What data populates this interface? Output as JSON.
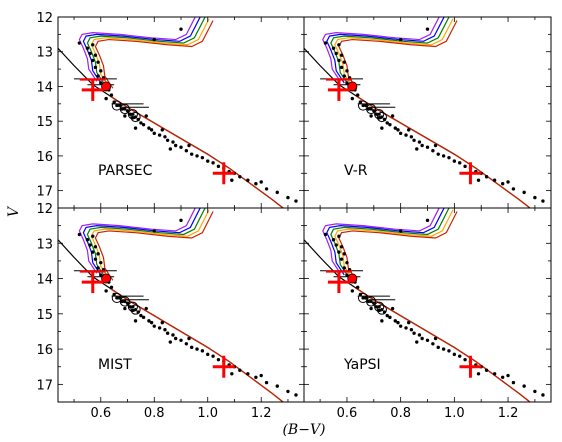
{
  "chart_data": {
    "type": "scatter",
    "xlabel": "(B−V)",
    "ylabel": "V",
    "xlim": [
      0.44,
      1.36
    ],
    "ylim": [
      17.5,
      12.0
    ],
    "y_inverted": true,
    "grid": false,
    "x_ticks": [
      "0.6",
      "0.8",
      "1.0",
      "1.2"
    ],
    "y_ticks": [
      "12",
      "13",
      "14",
      "15",
      "16",
      "17"
    ],
    "isochrone_colors": [
      "#a020f0",
      "#0000ff",
      "#008000",
      "#ffa500",
      "#cc2200"
    ],
    "highlight_color": "#ff0000",
    "panels": [
      {
        "label": "PARSEC"
      },
      {
        "label": "V-R"
      },
      {
        "label": "MIST"
      },
      {
        "label": "YaPSI"
      }
    ],
    "field_stars": [
      [
        0.52,
        12.75
      ],
      [
        0.55,
        12.9
      ],
      [
        0.56,
        13.05
      ],
      [
        0.57,
        12.8
      ],
      [
        0.58,
        13.1
      ],
      [
        0.57,
        13.25
      ],
      [
        0.59,
        13.3
      ],
      [
        0.58,
        13.45
      ],
      [
        0.6,
        13.55
      ],
      [
        0.59,
        13.7
      ],
      [
        0.61,
        13.75
      ],
      [
        0.6,
        13.9
      ],
      [
        0.62,
        13.95
      ],
      [
        0.63,
        14.1
      ],
      [
        0.64,
        14.25
      ],
      [
        0.62,
        14.35
      ],
      [
        0.65,
        14.45
      ],
      [
        0.67,
        14.55
      ],
      [
        0.68,
        14.65
      ],
      [
        0.7,
        14.7
      ],
      [
        0.71,
        14.8
      ],
      [
        0.72,
        14.9
      ],
      [
        0.74,
        14.95
      ],
      [
        0.75,
        15.05
      ],
      [
        0.76,
        15.1
      ],
      [
        0.78,
        15.2
      ],
      [
        0.79,
        15.25
      ],
      [
        0.8,
        15.35
      ],
      [
        0.82,
        15.4
      ],
      [
        0.84,
        15.45
      ],
      [
        0.85,
        15.55
      ],
      [
        0.87,
        15.6
      ],
      [
        0.88,
        15.7
      ],
      [
        0.9,
        15.75
      ],
      [
        0.92,
        15.85
      ],
      [
        0.94,
        15.95
      ],
      [
        0.96,
        16.0
      ],
      [
        0.98,
        16.05
      ],
      [
        1.0,
        16.15
      ],
      [
        1.02,
        16.2
      ],
      [
        1.04,
        16.3
      ],
      [
        1.06,
        16.35
      ],
      [
        1.08,
        16.45
      ],
      [
        1.1,
        16.5
      ],
      [
        1.12,
        16.6
      ],
      [
        1.15,
        16.7
      ],
      [
        1.18,
        16.8
      ],
      [
        1.22,
        16.95
      ],
      [
        1.26,
        17.05
      ],
      [
        1.3,
        17.2
      ],
      [
        1.33,
        17.3
      ],
      [
        0.73,
        15.2
      ],
      [
        0.83,
        15.25
      ],
      [
        0.77,
        14.85
      ],
      [
        0.69,
        14.85
      ],
      [
        0.86,
        15.8
      ],
      [
        0.93,
        15.7
      ],
      [
        1.09,
        16.7
      ],
      [
        1.2,
        16.75
      ],
      [
        0.9,
        12.35
      ],
      [
        0.8,
        12.65
      ]
    ],
    "circled_stars": [
      [
        0.66,
        14.55
      ],
      [
        0.69,
        14.65
      ],
      [
        0.72,
        14.8
      ],
      [
        0.73,
        14.88
      ]
    ],
    "red_dot": [
      0.62,
      14.0
    ],
    "crosses": [
      [
        0.57,
        14.1
      ],
      [
        1.06,
        16.5
      ]
    ]
  }
}
